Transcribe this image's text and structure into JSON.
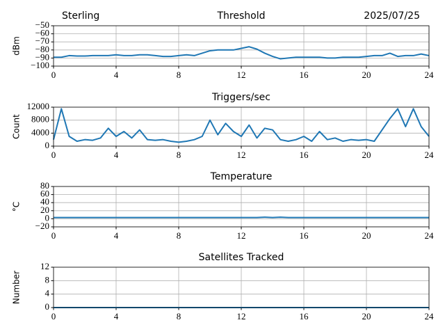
{
  "chart_data": [
    {
      "type": "line",
      "title_left": "Sterling",
      "title": "Threshold",
      "title_right": "2025/07/25",
      "ylabel": "dBm",
      "x": [
        0,
        0.5,
        1,
        1.5,
        2,
        2.5,
        3,
        3.5,
        4,
        4.5,
        5,
        5.5,
        6,
        6.5,
        7,
        7.5,
        8,
        8.5,
        9,
        9.5,
        10,
        10.5,
        11,
        11.5,
        12,
        12.5,
        13,
        13.5,
        14,
        14.5,
        15,
        15.5,
        16,
        16.5,
        17,
        17.5,
        18,
        18.5,
        19,
        19.5,
        20,
        20.5,
        21,
        21.5,
        22,
        22.5,
        23,
        23.5,
        24
      ],
      "color": "#1f77b4",
      "values": [
        -89,
        -89,
        -87,
        -87.5,
        -87.5,
        -87,
        -87,
        -87,
        -86,
        -87,
        -87,
        -86,
        -86,
        -87,
        -88,
        -88,
        -87,
        -86,
        -87,
        -84,
        -81,
        -80,
        -80,
        -80,
        -78,
        -76,
        -79,
        -84,
        -88,
        -91,
        -90,
        -89,
        -89,
        -89,
        -89,
        -90,
        -90,
        -89,
        -89,
        -89,
        -88,
        -87,
        -87,
        -84,
        -88,
        -87,
        -87,
        -85,
        -87
      ],
      "xlim": [
        0,
        24
      ],
      "xticks": [
        0,
        4,
        8,
        12,
        16,
        20,
        24
      ],
      "ylim": [
        -100,
        -50
      ],
      "yticks": [
        {
          "value": -50,
          "label": "−50"
        },
        {
          "value": -60,
          "label": "−60"
        },
        {
          "value": -70,
          "label": "−70"
        },
        {
          "value": -80,
          "label": "−80"
        },
        {
          "value": -90,
          "label": "−90"
        },
        {
          "value": -100,
          "label": "−100"
        }
      ],
      "grid": true
    },
    {
      "type": "line",
      "title": "Triggers/sec",
      "ylabel": "Count",
      "x": [
        0,
        0.5,
        1,
        1.5,
        2,
        2.5,
        3,
        3.5,
        4,
        4.5,
        5,
        5.5,
        6,
        6.5,
        7,
        7.5,
        8,
        8.5,
        9,
        9.5,
        10,
        10.5,
        11,
        11.5,
        12,
        12.5,
        13,
        13.5,
        14,
        14.5,
        15,
        15.5,
        16,
        16.5,
        17,
        17.5,
        18,
        18.5,
        19,
        19.5,
        20,
        20.5,
        21,
        21.5,
        22,
        22.5,
        23,
        23.5,
        24
      ],
      "color": "#1f77b4",
      "values": [
        2000,
        11500,
        3000,
        1500,
        2000,
        1800,
        2500,
        5500,
        3000,
        4500,
        2500,
        5000,
        2000,
        1800,
        2000,
        1500,
        1200,
        1500,
        2000,
        3000,
        8000,
        3500,
        7000,
        4500,
        3000,
        6500,
        2500,
        5500,
        5000,
        2000,
        1500,
        2000,
        3000,
        1500,
        4500,
        2000,
        2500,
        1500,
        2000,
        1800,
        2000,
        1500,
        5000,
        8500,
        11500,
        6000,
        11500,
        6000,
        3000
      ],
      "xlim": [
        0,
        24
      ],
      "xticks": [
        0,
        4,
        8,
        12,
        16,
        20,
        24
      ],
      "ylim": [
        0,
        12000
      ],
      "yticks": [
        0,
        4000,
        8000,
        12000
      ],
      "grid": true
    },
    {
      "type": "line",
      "title": "Temperature",
      "ylabel": "°C",
      "x": [
        0,
        0.5,
        1,
        1.5,
        2,
        2.5,
        3,
        3.5,
        4,
        4.5,
        5,
        5.5,
        6,
        6.5,
        7,
        7.5,
        8,
        8.5,
        9,
        9.5,
        10,
        10.5,
        11,
        11.5,
        12,
        12.5,
        13,
        13.5,
        14,
        14.5,
        15,
        15.5,
        16,
        16.5,
        17,
        17.5,
        18,
        18.5,
        19,
        19.5,
        20,
        20.5,
        21,
        21.5,
        22,
        22.5,
        23,
        23.5,
        24
      ],
      "color": "#1f77b4",
      "values": [
        3,
        3,
        3,
        3,
        3,
        3,
        3,
        3,
        3,
        3,
        3,
        3,
        3,
        3,
        3,
        3,
        3,
        3,
        3,
        3,
        3,
        3,
        3,
        3,
        3,
        3,
        3,
        4,
        3,
        4,
        3,
        3,
        3,
        3,
        3,
        3,
        3,
        3,
        3,
        3,
        3,
        3,
        3,
        3,
        3,
        3,
        3,
        3,
        3
      ],
      "xlim": [
        0,
        24
      ],
      "xticks": [
        0,
        4,
        8,
        12,
        16,
        20,
        24
      ],
      "ylim": [
        -20,
        80
      ],
      "yticks": [
        {
          "value": -20,
          "label": "−20"
        },
        0,
        20,
        40,
        60,
        80
      ],
      "grid": true
    },
    {
      "type": "line",
      "title": "Satellites Tracked",
      "ylabel": "Number",
      "x": [
        0,
        0.5,
        1,
        1.5,
        2,
        2.5,
        3,
        3.5,
        4,
        4.5,
        5,
        5.5,
        6,
        6.5,
        7,
        7.5,
        8,
        8.5,
        9,
        9.5,
        10,
        10.5,
        11,
        11.5,
        12,
        12.5,
        13,
        13.5,
        14,
        14.5,
        15,
        15.5,
        16,
        16.5,
        17,
        17.5,
        18,
        18.5,
        19,
        19.5,
        20,
        20.5,
        21,
        21.5,
        22,
        22.5,
        23,
        23.5,
        24
      ],
      "color": "#1f77b4",
      "values": [
        0,
        0,
        0,
        0,
        0,
        0,
        0,
        0,
        0,
        0,
        0,
        0,
        0,
        0,
        0,
        0,
        0,
        0,
        0,
        0,
        0,
        0,
        0,
        0,
        0,
        0,
        0,
        0,
        0,
        0,
        0,
        0,
        0,
        0,
        0,
        0,
        0,
        0,
        0,
        0,
        0,
        0,
        0,
        0,
        0,
        0,
        0,
        0,
        0
      ],
      "xlim": [
        0,
        24
      ],
      "xticks": [
        0,
        4,
        8,
        12,
        16,
        20,
        24
      ],
      "ylim": [
        0,
        12
      ],
      "yticks": [
        0,
        4,
        8,
        12
      ],
      "grid": true
    }
  ]
}
